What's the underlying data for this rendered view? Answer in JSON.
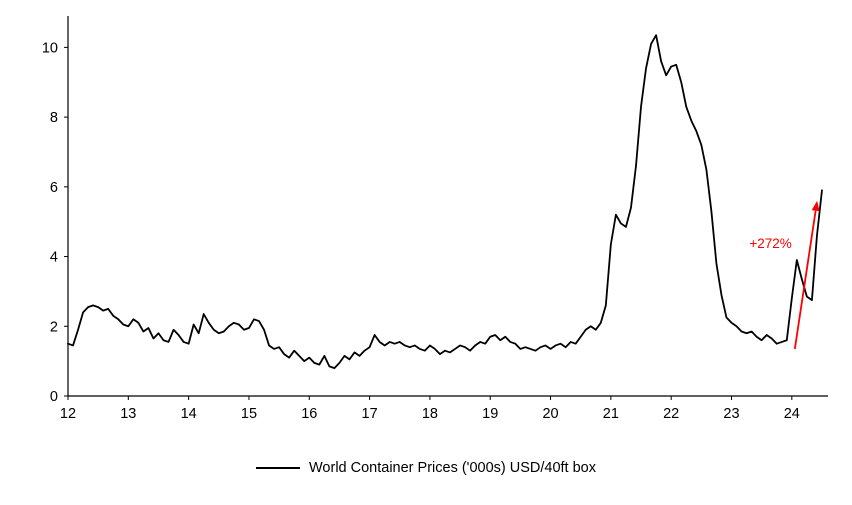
{
  "chart_data": {
    "type": "line",
    "title": "",
    "xlabel": "",
    "ylabel": "",
    "legend": "World Container Prices ('000s) USD/40ft box",
    "legend_position": "bottom-center",
    "grid": false,
    "x_ticks": [
      12,
      13,
      14,
      15,
      16,
      17,
      18,
      19,
      20,
      21,
      22,
      23,
      24
    ],
    "y_ticks": [
      0,
      2,
      4,
      6,
      8,
      10
    ],
    "xlim": [
      12,
      24.6
    ],
    "ylim": [
      0,
      10.9
    ],
    "points_per_year": 12,
    "series": [
      {
        "name": "World Container Prices ('000s) USD/40ft box",
        "color": "#000000",
        "x_start": 12,
        "values": [
          1.5,
          1.45,
          1.9,
          2.4,
          2.55,
          2.6,
          2.55,
          2.45,
          2.5,
          2.3,
          2.2,
          2.05,
          2.0,
          2.2,
          2.1,
          1.85,
          1.95,
          1.65,
          1.8,
          1.6,
          1.55,
          1.9,
          1.75,
          1.55,
          1.5,
          2.05,
          1.8,
          2.35,
          2.1,
          1.9,
          1.8,
          1.85,
          2.0,
          2.1,
          2.05,
          1.9,
          1.95,
          2.2,
          2.15,
          1.9,
          1.45,
          1.35,
          1.4,
          1.2,
          1.1,
          1.3,
          1.15,
          1.0,
          1.1,
          0.95,
          0.9,
          1.15,
          0.85,
          0.8,
          0.95,
          1.15,
          1.05,
          1.25,
          1.15,
          1.3,
          1.4,
          1.75,
          1.55,
          1.45,
          1.55,
          1.5,
          1.55,
          1.45,
          1.4,
          1.45,
          1.35,
          1.3,
          1.45,
          1.35,
          1.2,
          1.3,
          1.25,
          1.35,
          1.45,
          1.4,
          1.3,
          1.45,
          1.55,
          1.5,
          1.7,
          1.75,
          1.6,
          1.7,
          1.55,
          1.5,
          1.35,
          1.4,
          1.35,
          1.3,
          1.4,
          1.45,
          1.35,
          1.45,
          1.5,
          1.4,
          1.55,
          1.5,
          1.7,
          1.9,
          2.0,
          1.9,
          2.1,
          2.6,
          4.35,
          5.2,
          4.95,
          4.85,
          5.4,
          6.6,
          8.3,
          9.4,
          10.1,
          10.35,
          9.6,
          9.2,
          9.45,
          9.5,
          9.0,
          8.3,
          7.9,
          7.6,
          7.2,
          6.5,
          5.3,
          3.8,
          2.9,
          2.25,
          2.1,
          2.0,
          1.85,
          1.8,
          1.85,
          1.7,
          1.6,
          1.75,
          1.65,
          1.5,
          1.55,
          1.6,
          2.8,
          3.9,
          3.35,
          2.85,
          2.75,
          4.6,
          5.9
        ]
      }
    ],
    "annotation": {
      "label": "+272%",
      "color": "#FF0000",
      "arrow_from": {
        "x": 24.05,
        "y": 1.35
      },
      "arrow_to": {
        "x": 24.42,
        "y": 5.6
      },
      "label_at": {
        "x": 24.0,
        "y": 4.25
      }
    }
  }
}
